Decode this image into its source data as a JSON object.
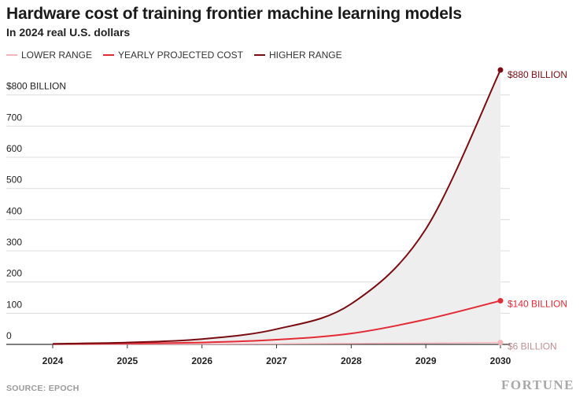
{
  "chart_data": {
    "type": "line",
    "title": "Hardware cost of training frontier machine learning models",
    "subtitle": "In 2024 real U.S. dollars",
    "x": [
      2024,
      2025,
      2026,
      2027,
      2028,
      2029,
      2030
    ],
    "x_tick_labels": [
      "2024",
      "2025",
      "2026",
      "2027",
      "2028",
      "2029",
      "2030"
    ],
    "y_tick_values": [
      0,
      100,
      200,
      300,
      400,
      500,
      600,
      700,
      800
    ],
    "y_tick_labels": [
      "0",
      "100",
      "200",
      "300",
      "400",
      "500",
      "600",
      "700",
      "$800 BILLION"
    ],
    "ylim": [
      0,
      880
    ],
    "xlim": [
      2024,
      2030
    ],
    "grid": true,
    "legend_position": "top-left",
    "series": [
      {
        "name": "LOWER RANGE",
        "color": "#f4b6bd",
        "values": [
          0.5,
          0.8,
          1.2,
          1.8,
          2.8,
          4.2,
          6
        ]
      },
      {
        "name": "YEARLY PROJECTED COST",
        "color": "#e32b36",
        "values": [
          1,
          3,
          6,
          15,
          35,
          80,
          140
        ]
      },
      {
        "name": "HIGHER RANGE",
        "color": "#7a0c11",
        "values": [
          2,
          6,
          17,
          49,
          130,
          370,
          880
        ]
      }
    ],
    "end_labels": [
      {
        "series": "HIGHER RANGE",
        "text": "$880 BILLION"
      },
      {
        "series": "YEARLY PROJECTED COST",
        "text": "$140 BILLION"
      },
      {
        "series": "LOWER RANGE",
        "text": "$6 BILLION"
      }
    ],
    "source": "SOURCE: EPOCH",
    "brand": "FORTUNE"
  }
}
